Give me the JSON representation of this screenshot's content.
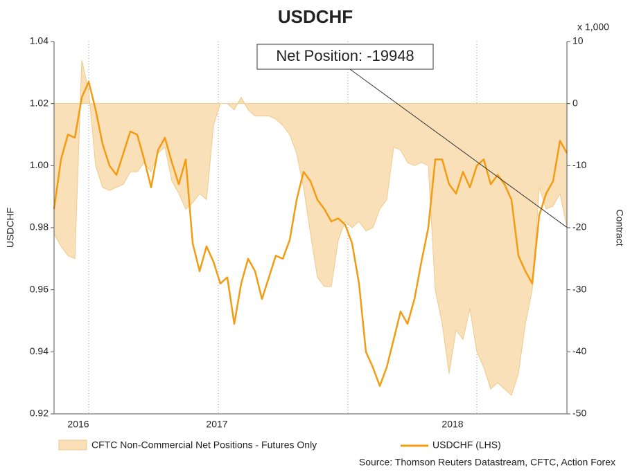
{
  "chart_data": {
    "type": "area_line",
    "title": "USDCHF",
    "y_label": "USDCHF",
    "y2_label": "Contract",
    "y2_unit": "x 1,000",
    "annotation": "Net Position: -19948",
    "source": "Source: Thomson Reuters Datastream, CFTC, Action Forex",
    "categories": [
      null,
      null,
      null,
      null,
      "2016",
      null,
      null,
      null,
      null,
      null,
      null,
      null,
      null,
      null,
      null,
      null,
      null,
      null,
      null,
      null,
      null,
      null,
      null,
      null,
      "2017",
      null,
      null,
      null,
      null,
      null,
      null,
      null,
      null,
      null,
      null,
      null,
      null,
      null,
      null,
      null,
      null,
      null,
      null,
      null,
      null,
      null,
      null,
      null,
      null,
      null,
      null,
      null,
      null,
      null,
      null,
      null,
      null,
      null,
      "2018",
      null,
      null,
      null,
      null,
      null,
      null,
      null,
      null,
      null,
      null,
      null,
      null,
      null,
      null,
      null,
      null
    ],
    "series": [
      {
        "name": "CFTC Non-Commercial Net Positions - Futures Only",
        "type": "area",
        "axis": "y2",
        "color": "#f9e0b8",
        "values": [
          -21,
          -23,
          -24.5,
          -25,
          7,
          2,
          -10,
          -13.5,
          -14,
          -13.5,
          -13,
          -11,
          -11,
          -9.5,
          -11,
          -8,
          -7,
          -12.5,
          -14.5,
          -17,
          -16,
          -14.5,
          -15.5,
          -3.5,
          0,
          0,
          -1,
          1,
          -1,
          -2,
          -2,
          -2,
          -2.5,
          -3.5,
          -5,
          -8,
          -13.5,
          -21,
          -28,
          -29.5,
          -29.5,
          -22,
          -19,
          -20,
          -19,
          -20.5,
          -20,
          -17,
          -15.5,
          -7,
          -7.5,
          -9.5,
          -10,
          -9.5,
          -10,
          -30,
          -35.5,
          -43.5,
          -36.5,
          -38,
          -33,
          -40,
          -42.5,
          -46,
          -45,
          -46,
          -47,
          -43.5,
          -35.5,
          -30,
          -13.5,
          -17,
          -16.5,
          -14.5,
          -19.948
        ]
      },
      {
        "name": "USDCHF (LHS)",
        "type": "line",
        "axis": "y",
        "color": "#f39c12",
        "values": [
          0.986,
          1.002,
          1.01,
          1.009,
          1.022,
          1.027,
          1.018,
          1.007,
          1.0,
          0.997,
          1.004,
          1.011,
          1.01,
          1.002,
          0.993,
          1.005,
          1.009,
          1.001,
          0.994,
          1.002,
          0.975,
          0.966,
          0.974,
          0.969,
          0.962,
          0.964,
          0.949,
          0.962,
          0.97,
          0.966,
          0.957,
          0.964,
          0.971,
          0.97,
          0.976,
          0.989,
          0.998,
          0.995,
          0.989,
          0.986,
          0.982,
          0.983,
          0.981,
          0.975,
          0.962,
          0.94,
          0.935,
          0.929,
          0.935,
          0.944,
          0.953,
          0.949,
          0.957,
          0.969,
          0.98,
          1.002,
          1.002,
          0.994,
          0.991,
          0.998,
          0.993,
          1.0,
          1.002,
          0.994,
          0.997,
          0.994,
          0.989,
          0.971,
          0.966,
          0.962,
          0.984,
          0.991,
          0.995,
          1.008,
          1.004
        ]
      }
    ],
    "ylim": [
      0.92,
      1.04
    ],
    "yticks": [
      0.92,
      0.94,
      0.96,
      0.98,
      {
        "value": 1,
        "label": "1.00"
      },
      1.02,
      1.04
    ],
    "y2lim": [
      -50,
      10
    ],
    "y2ticks": [
      -50,
      -40,
      -30,
      -20,
      -10,
      0,
      10
    ],
    "grid": false
  }
}
